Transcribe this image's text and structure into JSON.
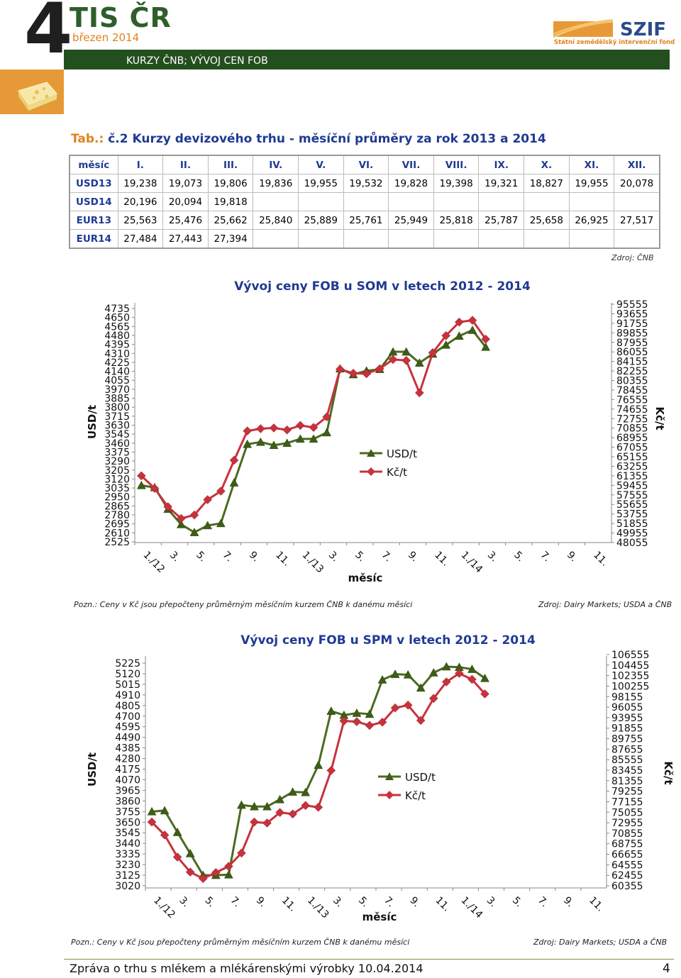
{
  "header": {
    "logo_number": "4",
    "logo_title": "TIS ČR",
    "logo_date": "březen 2014",
    "section": "KURZY ČNB; VÝVOJ CEN FOB",
    "szif_logo": "SZIF",
    "szif_sub": "Státní zemědělský intervenční fond"
  },
  "table": {
    "title_prefix": "Tab.:",
    "title": " č.2 Kurzy devizového trhu - měsíční průměry za rok 2013 a 2014",
    "columns": [
      "měsíc",
      "I.",
      "II.",
      "III.",
      "IV.",
      "V.",
      "VI.",
      "VII.",
      "VIII.",
      "IX.",
      "X.",
      "XI.",
      "XII."
    ],
    "rows": [
      {
        "label": "USD13",
        "values": [
          "19,238",
          "19,073",
          "19,806",
          "19,836",
          "19,955",
          "19,532",
          "19,828",
          "19,398",
          "19,321",
          "18,827",
          "19,955",
          "20,078"
        ]
      },
      {
        "label": "USD14",
        "values": [
          "20,196",
          "20,094",
          "19,818",
          "",
          "",
          "",
          "",
          "",
          "",
          "",
          "",
          ""
        ]
      },
      {
        "label": "EUR13",
        "values": [
          "25,563",
          "25,476",
          "25,662",
          "25,840",
          "25,889",
          "25,761",
          "25,949",
          "25,818",
          "25,787",
          "25,658",
          "26,925",
          "27,517"
        ]
      },
      {
        "label": "EUR14",
        "values": [
          "27,484",
          "27,443",
          "27,394",
          "",
          "",
          "",
          "",
          "",
          "",
          "",
          "",
          ""
        ]
      }
    ],
    "source": "Zdroj: ČNB"
  },
  "chart_data": [
    {
      "type": "line",
      "title": "Vývoj ceny FOB u SOM v letech 2012 - 2014",
      "xlabel": "měsíc",
      "ylabel": "USD/t",
      "y2label": "Kč/t",
      "x_ticks": [
        "1./12",
        "3.",
        "5.",
        "7.",
        "9.",
        "11.",
        "1./13",
        "3.",
        "5.",
        "7.",
        "9.",
        "11.",
        "1./14",
        "3.",
        "5.",
        "7.",
        "9.",
        "11."
      ],
      "y_ticks": [
        "4735",
        "4650",
        "4565",
        "4480",
        "4395",
        "4310",
        "4225",
        "4140",
        "4055",
        "3970",
        "3885",
        "3800",
        "3715",
        "3630",
        "3545",
        "3460",
        "3375",
        "3290",
        "3205",
        "3120",
        "3035",
        "2950",
        "2865",
        "2780",
        "2695",
        "2610",
        "2525"
      ],
      "y2_ticks": [
        "95555",
        "93655",
        "91755",
        "89855",
        "87955",
        "86055",
        "84155",
        "82255",
        "80355",
        "78455",
        "76555",
        "74655",
        "72755",
        "70855",
        "68955",
        "67055",
        "65155",
        "63255",
        "61355",
        "59455",
        "57555",
        "55655",
        "53755",
        "51855",
        "49955",
        "48055"
      ],
      "ylim": [
        2525,
        4775
      ],
      "y2lim": [
        48055,
        96000
      ],
      "legend": "center",
      "grid": false,
      "series": [
        {
          "name": "USD/t",
          "axis": "left",
          "color": "#4a6b1f",
          "marker": "triangle",
          "values": [
            3060,
            3040,
            2835,
            2690,
            2615,
            2680,
            2700,
            3085,
            3450,
            3470,
            3440,
            3460,
            3500,
            3500,
            3560,
            4165,
            4110,
            4145,
            4160,
            4325,
            4325,
            4220,
            4305,
            4390,
            4475,
            4530,
            4370
          ]
        },
        {
          "name": "Kč/t",
          "axis": "right",
          "color": "#c8323c",
          "marker": "diamond",
          "values": [
            61355,
            58850,
            55200,
            52850,
            53550,
            56600,
            58300,
            64450,
            70300,
            70750,
            70900,
            70500,
            71400,
            71000,
            73100,
            82600,
            81800,
            81700,
            82700,
            84550,
            84350,
            77900,
            85900,
            89300,
            92000,
            92350,
            88600
          ]
        }
      ]
    },
    {
      "type": "line",
      "title": "Vývoj ceny FOB u SPM v letech 2012 - 2014",
      "xlabel": "měsíc",
      "ylabel": "USD/t",
      "y2label": "Kč/t",
      "x_ticks": [
        "1./12",
        "3.",
        "5.",
        "7.",
        "9.",
        "11.",
        "1./13",
        "3.",
        "5.",
        "7.",
        "9.",
        "11.",
        "1./14",
        "3.",
        "5.",
        "7.",
        "9.",
        "11."
      ],
      "y_ticks": [
        "5225",
        "5120",
        "5015",
        "4910",
        "4805",
        "4700",
        "4595",
        "4490",
        "4385",
        "4280",
        "4175",
        "4070",
        "3965",
        "3860",
        "3755",
        "3650",
        "3545",
        "3440",
        "3335",
        "3230",
        "3125",
        "3020"
      ],
      "y2_ticks": [
        "106555",
        "104455",
        "102355",
        "100255",
        "98155",
        "96055",
        "93955",
        "91855",
        "89755",
        "87655",
        "85555",
        "83455",
        "81355",
        "79255",
        "77155",
        "75055",
        "72955",
        "70855",
        "68755",
        "66655",
        "64555",
        "62455",
        "60355"
      ],
      "ylim": [
        3020,
        5300
      ],
      "y2lim": [
        60355,
        107300
      ],
      "legend": "center",
      "grid": false,
      "series": [
        {
          "name": "USD/t",
          "axis": "left",
          "color": "#4a6b1f",
          "marker": "triangle",
          "values": [
            3755,
            3765,
            3550,
            3340,
            3125,
            3125,
            3130,
            3820,
            3805,
            3805,
            3875,
            3950,
            3945,
            4215,
            4750,
            4710,
            4730,
            4720,
            5060,
            5115,
            5110,
            4980,
            5130,
            5190,
            5185,
            5165,
            5075
          ]
        },
        {
          "name": "Kč/t",
          "axis": "right",
          "color": "#c8323c",
          "marker": "diamond",
          "values": [
            73100,
            70500,
            66100,
            63100,
            61800,
            63000,
            64250,
            66900,
            73100,
            72900,
            75000,
            74700,
            76400,
            76050,
            83400,
            93300,
            93150,
            92400,
            93050,
            95900,
            96450,
            93400,
            97800,
            101100,
            102800,
            101600,
            98700
          ]
        }
      ]
    }
  ],
  "notes": {
    "pozn1": "Pozn.: Ceny v Kč jsou přepočteny průměrným měsíčním kurzem ČNB k danému měsíci",
    "zdroj1": "Zdroj: Dairy Markets; USDA a ČNB",
    "pozn2": "Pozn.: Ceny v Kč jsou přepočteny průměrným měsíčním kurzem ČNB k danému měsíci",
    "zdroj2": "Zdroj: Dairy Markets; USDA a ČNB"
  },
  "footer": {
    "text": "Zpráva o trhu s mlékem a mlékárenskými výrobky 10.04.2014",
    "page": "4"
  }
}
